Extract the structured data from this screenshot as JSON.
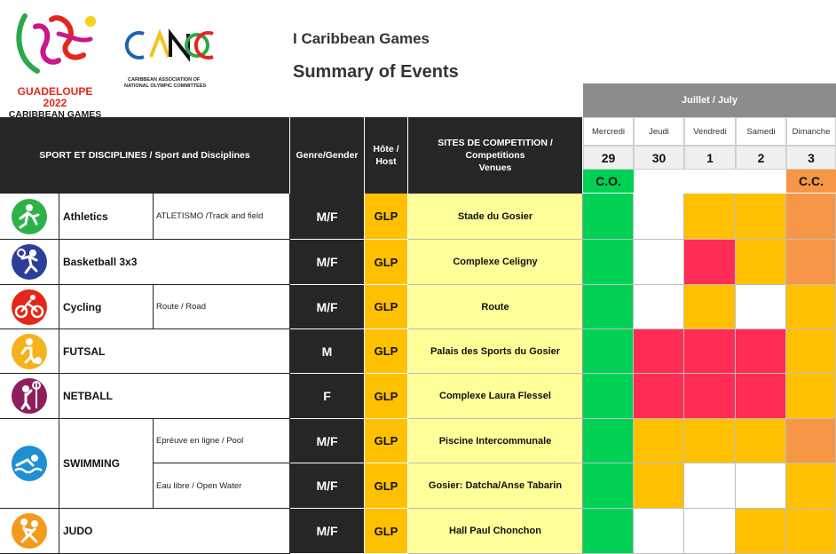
{
  "header": {
    "title": "I Caribbean Games",
    "subtitle": "Summary of Events",
    "games_logo_line1": "GUADELOUPE 2022",
    "games_logo_line2": "CARIBBEAN GAMES",
    "assoc_logo_text": "CANOC",
    "assoc_name_line1": "CARIBBEAN ASSOCIATION OF",
    "assoc_name_line2": "NATIONAL OLYMPIC COMMITTEES"
  },
  "columns": {
    "sport": "SPORT ET DISCIPLINES / Sport and Disciplines",
    "gender": "Genre/Gender",
    "host_line1": "Hôte /",
    "host_line2": "Host",
    "venue_line1": "SITES DE COMPETITION   / Competitions",
    "venue_line2": "Venues",
    "month": "Juillet / July"
  },
  "days": [
    {
      "name": "Mercredi",
      "num": "29"
    },
    {
      "name": "Jeudi",
      "num": "30"
    },
    {
      "name": "Vendredi",
      "num": "1"
    },
    {
      "name": "Samedi",
      "num": "2"
    },
    {
      "name": "Dimanche",
      "num": "3"
    }
  ],
  "ceremonies": {
    "opening": "C.O.",
    "closing": "C.C."
  },
  "colors": {
    "green": "#00d154",
    "orange": "#ffc000",
    "red": "#ff2d55",
    "peach": "#f79646",
    "white": "#ffffff"
  },
  "rows": [
    {
      "sport": "Athletics",
      "sub": "ATLETISMO /Track and field",
      "gender": "M/F",
      "host": "GLP",
      "venue": "Stade du Gosier",
      "icon": "athletics-icon",
      "icon_color": "#2db24a",
      "sched": [
        "green",
        "white",
        "orange",
        "orange",
        "peach"
      ]
    },
    {
      "sport": "Basketball 3x3",
      "sub": "",
      "gender": "M/F",
      "host": "GLP",
      "venue": "Complexe Celigny",
      "icon": "basketball-icon",
      "icon_color": "#2d3e9a",
      "sched": [
        "green",
        "white",
        "red",
        "orange",
        "peach"
      ]
    },
    {
      "sport": "Cycling",
      "sub": "Route / Road",
      "gender": "M/F",
      "host": "GLP",
      "venue": "Route",
      "icon": "cycling-icon",
      "icon_color": "#e2281b",
      "sched": [
        "green",
        "white",
        "orange",
        "white",
        "orange"
      ]
    },
    {
      "sport": "FUTSAL",
      "sub": "",
      "gender": "M",
      "host": "GLP",
      "venue": "Palais des Sports du Gosier",
      "icon": "futsal-icon",
      "icon_color": "#f5b21c",
      "sched": [
        "green",
        "red",
        "red",
        "red",
        "orange"
      ]
    },
    {
      "sport": "NETBALL",
      "sub": "",
      "gender": "F",
      "host": "GLP",
      "venue": "Complexe Laura Flessel",
      "icon": "netball-icon",
      "icon_color": "#8f1e5f",
      "sched": [
        "green",
        "red",
        "red",
        "red",
        "orange"
      ]
    },
    {
      "sport": "SWIMMING",
      "sub": "Epréuve en ligne / Pool",
      "gender": "M/F",
      "host": "GLP",
      "venue": "Piscine Intercommunale",
      "icon": "swimming-icon",
      "icon_color": "#1e8fd2",
      "sched": [
        "green",
        "orange",
        "orange",
        "orange",
        "peach"
      ]
    },
    {
      "sport": "",
      "sub": "Eau libre / Open Water",
      "gender": "M/F",
      "host": "GLP",
      "venue": "Gosier: Datcha/Anse Tabarin",
      "icon": "",
      "icon_color": "",
      "sched": [
        "green",
        "orange",
        "white",
        "white",
        "orange"
      ]
    },
    {
      "sport": "JUDO",
      "sub": "",
      "gender": "M/F",
      "host": "GLP",
      "venue": "Hall Paul Chonchon",
      "icon": "judo-icon",
      "icon_color": "#f39a1c",
      "sched": [
        "green",
        "white",
        "white",
        "orange",
        "orange"
      ]
    }
  ]
}
